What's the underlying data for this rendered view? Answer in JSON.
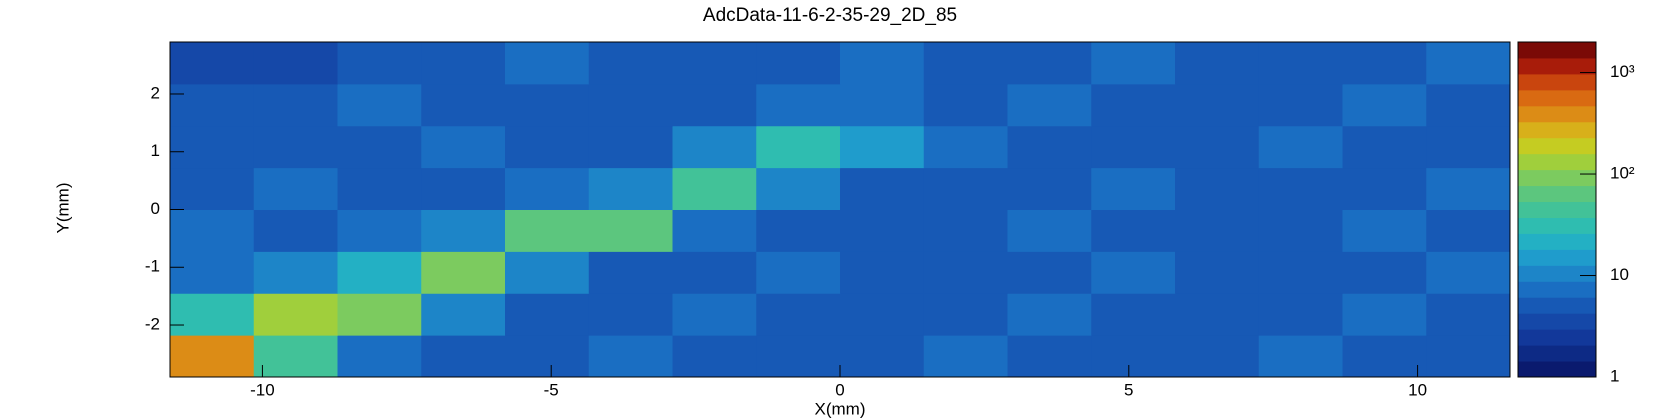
{
  "chart_data": {
    "type": "heatmap",
    "title": "AdcData-11-6-2-35-29_2D_85",
    "x_label": "X(mm)",
    "y_label": "Y(mm)",
    "xlim": [
      -11.6,
      11.6
    ],
    "ylim": [
      -2.9,
      2.9
    ],
    "xticks": [
      -10,
      -5,
      0,
      5,
      10
    ],
    "yticks": [
      -2,
      -1,
      0,
      1,
      2
    ],
    "xbins": [
      -11.6,
      -10.15,
      -8.7,
      -7.25,
      -5.8,
      -4.35,
      -2.9,
      -1.45,
      0,
      1.45,
      2.9,
      4.35,
      5.8,
      7.25,
      8.7,
      10.15,
      11.6
    ],
    "ybins": [
      -2.9,
      -2.175,
      -1.45,
      -0.725,
      0,
      0.725,
      1.45,
      2.175,
      2.9
    ],
    "z": [
      [
        400,
        40,
        8,
        6,
        5,
        7,
        6,
        5,
        6,
        7,
        6,
        5,
        6,
        7,
        6,
        5
      ],
      [
        30,
        150,
        90,
        10,
        6,
        5,
        7,
        6,
        5,
        6,
        7,
        6,
        5,
        6,
        7,
        6
      ],
      [
        8,
        12,
        25,
        80,
        9,
        6,
        5,
        7,
        6,
        5,
        6,
        7,
        6,
        5,
        6,
        7
      ],
      [
        7,
        6,
        8,
        12,
        70,
        55,
        8,
        6,
        5,
        6,
        7,
        6,
        5,
        6,
        7,
        6
      ],
      [
        6,
        7,
        6,
        6,
        8,
        12,
        50,
        10,
        6,
        5,
        6,
        7,
        6,
        5,
        6,
        7
      ],
      [
        6,
        5,
        6,
        7,
        6,
        6,
        10,
        35,
        15,
        7,
        6,
        5,
        6,
        7,
        6,
        5
      ],
      [
        5,
        6,
        7,
        6,
        5,
        6,
        6,
        8,
        8,
        6,
        7,
        6,
        5,
        6,
        7,
        6
      ],
      [
        4,
        3,
        5,
        6,
        7,
        6,
        5,
        6,
        7,
        6,
        5,
        7,
        6,
        5,
        6,
        7
      ]
    ],
    "zlog": true,
    "zlim": [
      1,
      2000
    ],
    "zticks": [
      1,
      10,
      {
        "value": 100,
        "label": "10²"
      },
      {
        "value": 1000,
        "label": "10³"
      }
    ],
    "colormap": [
      "#0a1a6e",
      "#0d2a85",
      "#12389a",
      "#1548a8",
      "#1759b5",
      "#1a6ec2",
      "#1d85c8",
      "#1f9ccc",
      "#23b0c4",
      "#2fbdb0",
      "#42c298",
      "#5cc67e",
      "#7ccb5f",
      "#a0cf3c",
      "#c5cc22",
      "#d8b01a",
      "#dc8c16",
      "#d96a12",
      "#c9450e",
      "#a81c0a",
      "#7a0a06"
    ]
  }
}
